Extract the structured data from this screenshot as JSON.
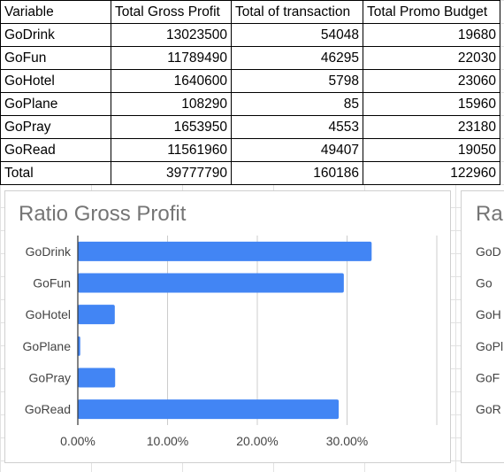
{
  "table": {
    "headers": [
      "Variable",
      "Total Gross Profit",
      "Total of transaction",
      "Total Promo Budget"
    ],
    "rows": [
      [
        "GoDrink",
        "13023500",
        "54048",
        "19680"
      ],
      [
        "GoFun",
        "11789490",
        "46295",
        "22030"
      ],
      [
        "GoHotel",
        "1640600",
        "5798",
        "23060"
      ],
      [
        "GoPlane",
        "108290",
        "85",
        "15960"
      ],
      [
        "GoPray",
        "1653950",
        "4553",
        "23180"
      ],
      [
        "GoRead",
        "11561960",
        "49407",
        "19050"
      ],
      [
        "Total",
        "39777790",
        "160186",
        "122960"
      ]
    ]
  },
  "chart_data": [
    {
      "type": "bar",
      "orientation": "horizontal",
      "title": "Ratio Gross Profit",
      "categories": [
        "GoDrink",
        "GoFun",
        "GoHotel",
        "GoPlane",
        "GoPray",
        "GoRead"
      ],
      "values": [
        32.74,
        29.64,
        4.12,
        0.27,
        4.16,
        29.07
      ],
      "x_ticks": [
        "0.00%",
        "10.00%",
        "20.00%",
        "30.00%"
      ],
      "xlim": [
        0,
        40
      ],
      "grid": true,
      "legend": "none",
      "bar_color": "#4285f4"
    },
    {
      "type": "bar",
      "title": "Ra",
      "categories": [
        "GoD",
        "Go",
        "GoH",
        "GoPl",
        "GoF",
        "GoR"
      ]
    }
  ],
  "colors": {
    "bar": "#4285f4",
    "title": "#757575",
    "grid": "#cccccc"
  }
}
